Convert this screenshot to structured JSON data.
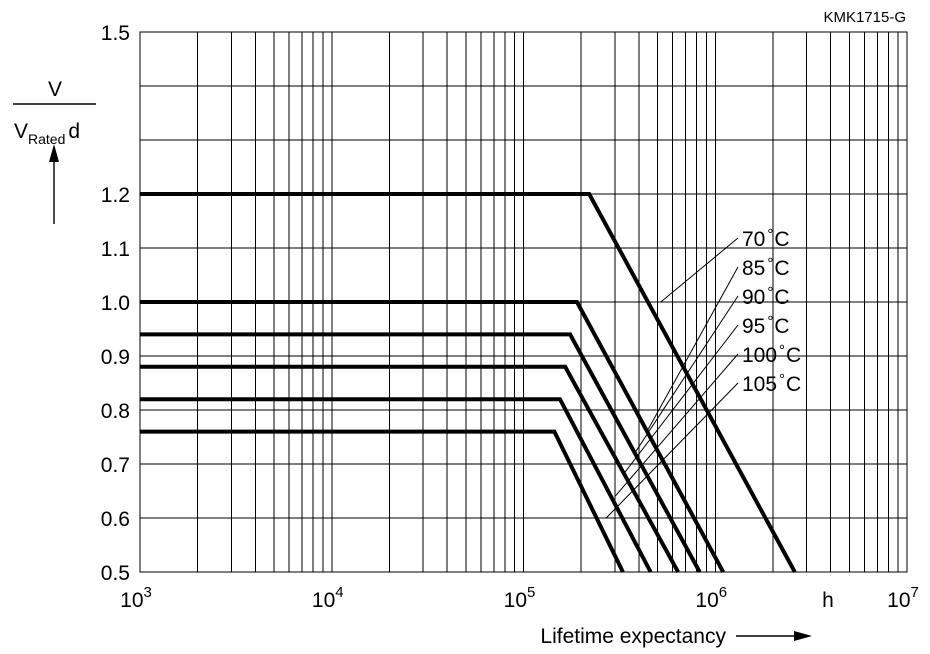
{
  "figure_code": "KMK1715-G",
  "chart_data": {
    "type": "line",
    "title": "",
    "x_scale": "log",
    "xlim": [
      1000,
      10000000
    ],
    "ylim": [
      0.5,
      1.5
    ],
    "grid": true,
    "x_ticks": [
      {
        "base": "10",
        "exp": "3"
      },
      {
        "base": "10",
        "exp": "4"
      },
      {
        "base": "10",
        "exp": "5"
      },
      {
        "base": "10",
        "exp": "6"
      },
      {
        "base": "10",
        "exp": "7"
      }
    ],
    "x_unit": "h",
    "xlabel": "Lifetime expectancy",
    "ylabel": {
      "numerator": "V",
      "denominator": "V",
      "subscript": "Rated",
      "suffix": "d"
    },
    "y_ticks": [
      {
        "v": 0.5,
        "label": "0.5"
      },
      {
        "v": 0.6,
        "label": "0.6"
      },
      {
        "v": 0.7,
        "label": "0.7"
      },
      {
        "v": 0.8,
        "label": "0.8"
      },
      {
        "v": 0.9,
        "label": "0.9"
      },
      {
        "v": 1.0,
        "label": "1.0"
      },
      {
        "v": 1.1,
        "label": "1.1"
      },
      {
        "v": 1.2,
        "label": "1.2"
      },
      {
        "v": 1.5,
        "label": "1.5"
      }
    ],
    "y_grid": [
      0.5,
      0.6,
      0.7,
      0.8,
      0.9,
      1.0,
      1.1,
      1.2,
      1.3,
      1.4,
      1.5
    ],
    "series": [
      {
        "name": "70 °C",
        "label_base": "70",
        "points": [
          [
            1000,
            1.2
          ],
          [
            220000,
            1.2
          ],
          [
            2600000,
            0.5
          ]
        ],
        "label_anchor": [
          520000,
          1.0
        ]
      },
      {
        "name": "85 °C",
        "label_base": "85",
        "points": [
          [
            1000,
            1.0
          ],
          [
            190000,
            1.0
          ],
          [
            1100000,
            0.5
          ]
        ],
        "label_anchor": [
          440000,
          0.76
        ]
      },
      {
        "name": "90 °C",
        "label_base": "90",
        "points": [
          [
            1000,
            0.94
          ],
          [
            175000,
            0.94
          ],
          [
            830000,
            0.5
          ]
        ],
        "label_anchor": [
          380000,
          0.72
        ]
      },
      {
        "name": "95 °C",
        "label_base": "95",
        "points": [
          [
            1000,
            0.88
          ],
          [
            165000,
            0.88
          ],
          [
            640000,
            0.5
          ]
        ],
        "label_anchor": [
          330000,
          0.68
        ]
      },
      {
        "name": "100 °C",
        "label_base": "100",
        "points": [
          [
            1000,
            0.82
          ],
          [
            155000,
            0.82
          ],
          [
            460000,
            0.5
          ]
        ],
        "label_anchor": [
          300000,
          0.64
        ]
      },
      {
        "name": "105 °C",
        "label_base": "105",
        "points": [
          [
            1000,
            0.76
          ],
          [
            145000,
            0.76
          ],
          [
            330000,
            0.5
          ]
        ],
        "label_anchor": [
          270000,
          0.6
        ]
      }
    ],
    "degree_symbol": "°",
    "unit_C": "C"
  }
}
